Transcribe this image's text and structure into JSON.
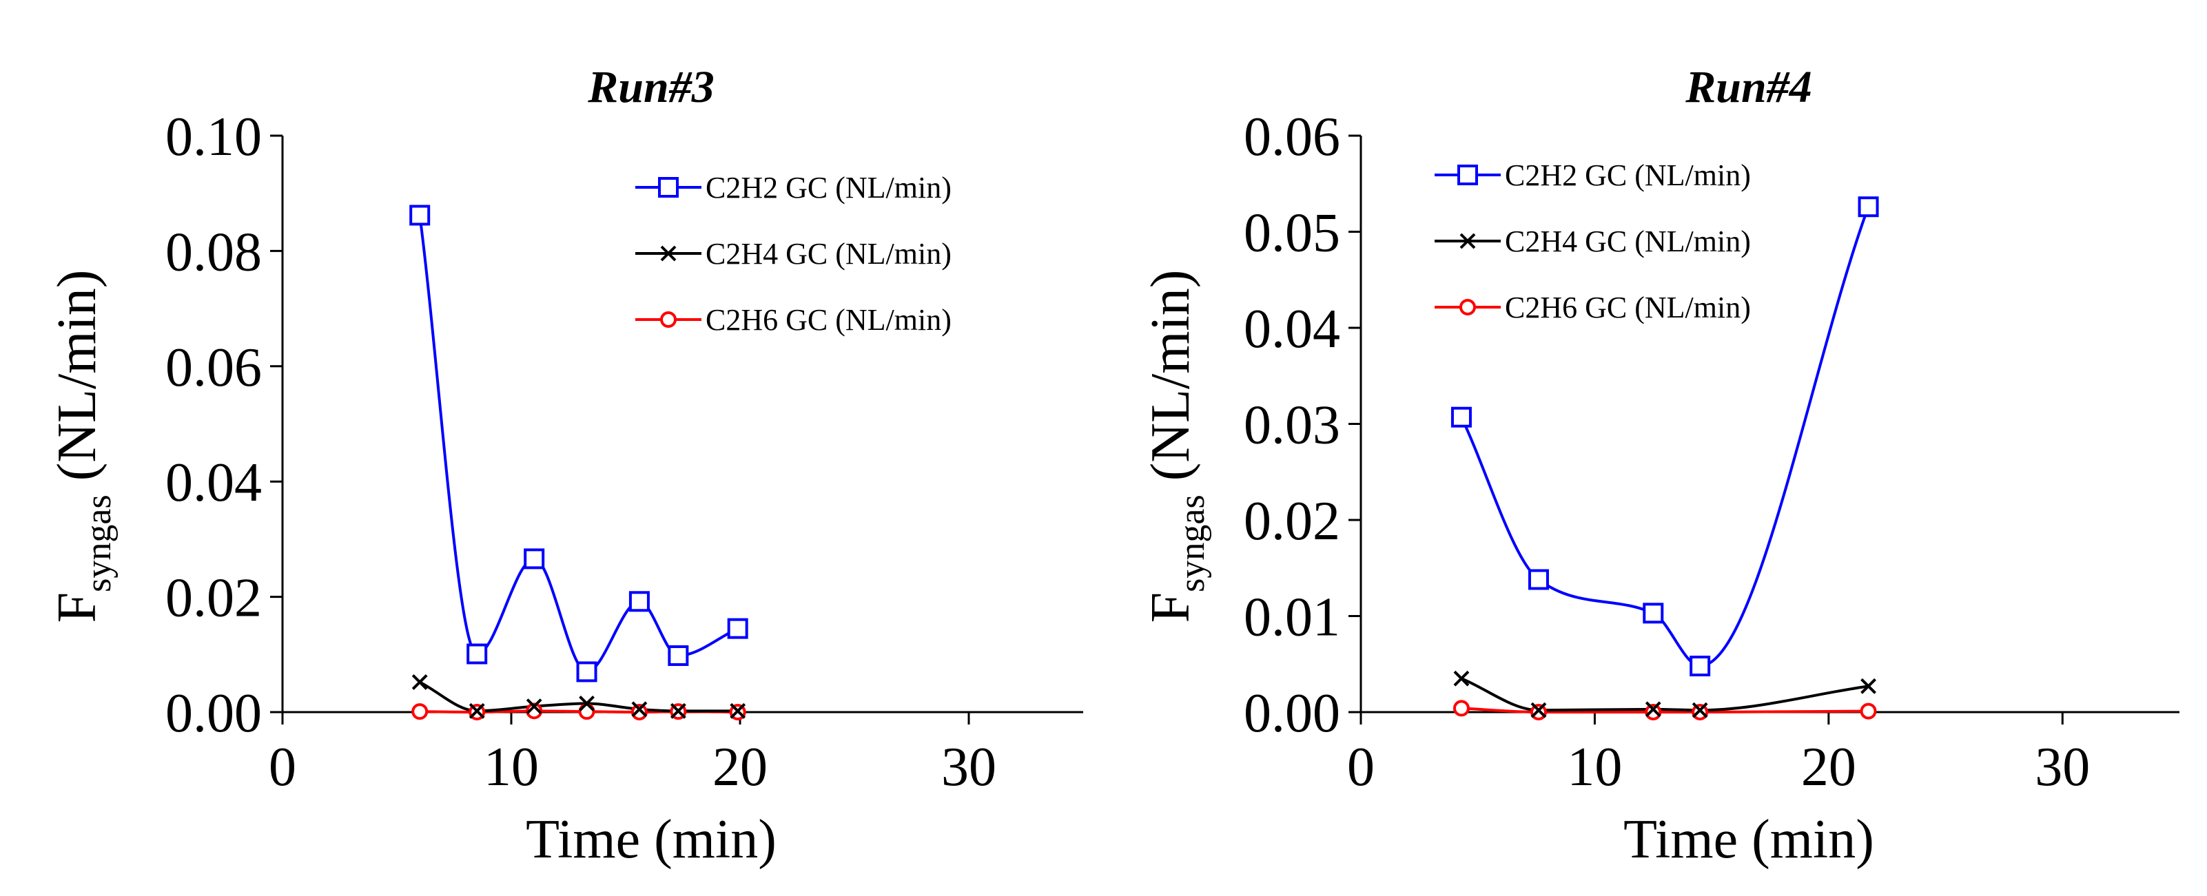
{
  "chart_data": [
    {
      "type": "line",
      "title": "Run#3",
      "xlabel": "Time (min)",
      "ylabel_main": "F",
      "ylabel_sub": "syngas",
      "ylabel_unit": " (NL/min)",
      "xlim": [
        0,
        35
      ],
      "ylim": [
        0,
        0.1
      ],
      "xticks": [
        0,
        10,
        20,
        30
      ],
      "xtick_labels": [
        "0",
        "10",
        "20",
        "30"
      ],
      "yticks": [
        0,
        0.02,
        0.04,
        0.06,
        0.08,
        0.1
      ],
      "ytick_labels": [
        "0.00",
        "0.02",
        "0.04",
        "0.06",
        "0.08",
        "0.10"
      ],
      "legend_position": "top-right",
      "series": [
        {
          "name": "C2H2 GC (NL/min)",
          "color": "#0000ff",
          "marker": "square",
          "x": [
            6.0,
            8.5,
            11.0,
            13.3,
            15.6,
            17.3,
            19.9
          ],
          "y": [
            0.0862,
            0.0101,
            0.0266,
            0.007,
            0.0192,
            0.0098,
            0.0145
          ]
        },
        {
          "name": "C2H4 GC (NL/min)",
          "color": "#000000",
          "marker": "x",
          "x": [
            6.0,
            8.5,
            11.0,
            13.3,
            15.6,
            17.3,
            19.9
          ],
          "y": [
            0.0052,
            0.0002,
            0.001,
            0.0015,
            0.0005,
            0.0002,
            0.0002
          ]
        },
        {
          "name": "C2H6 GC (NL/min)",
          "color": "#ff0000",
          "marker": "circle",
          "x": [
            6.0,
            8.5,
            11.0,
            13.3,
            15.6,
            17.3,
            19.9
          ],
          "y": [
            0.0001,
            0.0,
            0.0002,
            0.0001,
            0.0,
            0.0001,
            0.0
          ]
        }
      ]
    },
    {
      "type": "line",
      "title": "Run#4",
      "xlabel": "Time (min)",
      "ylabel_main": "F",
      "ylabel_sub": "syngas",
      "ylabel_unit": " (NL/min)",
      "xlim": [
        0,
        35
      ],
      "ylim": [
        0,
        0.06
      ],
      "xticks": [
        0,
        10,
        20,
        30
      ],
      "xtick_labels": [
        "0",
        "10",
        "20",
        "30"
      ],
      "yticks": [
        0,
        0.01,
        0.02,
        0.03,
        0.04,
        0.05,
        0.06
      ],
      "ytick_labels": [
        "0.00",
        "0.01",
        "0.02",
        "0.03",
        "0.04",
        "0.05",
        "0.06"
      ],
      "legend_position": "top-left",
      "series": [
        {
          "name": "C2H2 GC (NL/min)",
          "color": "#0000ff",
          "marker": "square",
          "x": [
            4.3,
            7.6,
            12.5,
            14.5,
            21.7
          ],
          "y": [
            0.0307,
            0.0138,
            0.0103,
            0.0048,
            0.0526
          ]
        },
        {
          "name": "C2H4 GC (NL/min)",
          "color": "#000000",
          "marker": "x",
          "x": [
            4.3,
            7.6,
            12.5,
            14.5,
            21.7
          ],
          "y": [
            0.0035,
            0.0002,
            0.0003,
            0.0002,
            0.0027
          ]
        },
        {
          "name": "C2H6 GC (NL/min)",
          "color": "#ff0000",
          "marker": "circle",
          "x": [
            4.3,
            7.6,
            12.5,
            14.5,
            21.7
          ],
          "y": [
            0.0004,
            0.0,
            0.0,
            0.0,
            0.0001
          ]
        }
      ]
    }
  ]
}
